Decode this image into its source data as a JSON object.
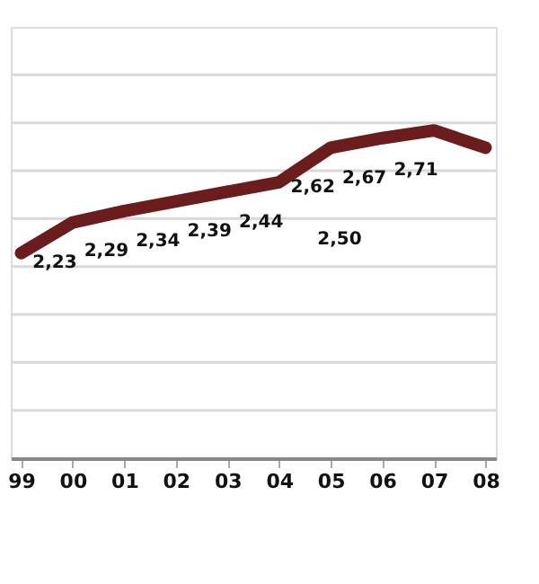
{
  "chart_data": {
    "type": "line",
    "categories": [
      "99",
      "00",
      "01",
      "02",
      "03",
      "04",
      "05",
      "06",
      "07",
      "08"
    ],
    "series": [
      {
        "color": "#6b1c1c",
        "values": [
          2.07,
          2.23,
          2.29,
          2.34,
          2.39,
          2.44,
          2.62,
          2.67,
          2.71,
          2.62
        ],
        "value_labels": [
          null,
          "2,23",
          "2,29",
          "2,34",
          "2,39",
          "2,44",
          "2,62",
          "2,67",
          "2,71",
          null
        ]
      }
    ],
    "annotations": [
      "2,50"
    ],
    "ylim": [
      1.0,
      3.25
    ],
    "yticks": [
      {
        "value": 1.25,
        "label": null
      },
      {
        "value": 1.5,
        "label": null
      },
      {
        "value": 1.75,
        "label": null
      },
      {
        "value": 2.0,
        "label": null
      },
      {
        "value": 2.25,
        "label": null
      },
      {
        "value": 2.5,
        "label": null
      },
      {
        "value": 2.75,
        "label": null
      },
      {
        "value": 3.0,
        "label": null
      }
    ],
    "grid": "y",
    "line_style": "solid"
  }
}
